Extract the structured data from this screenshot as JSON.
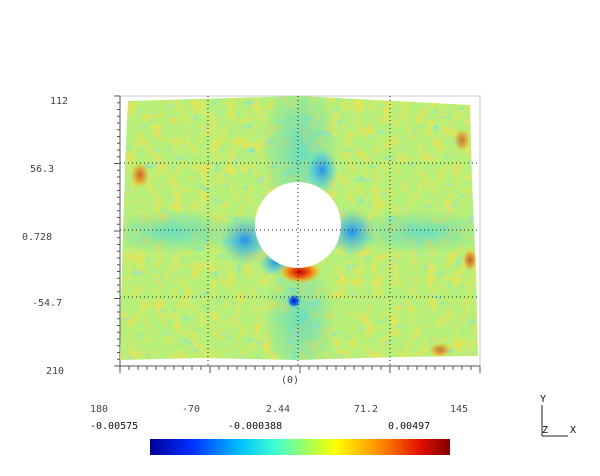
{
  "chart_data": {
    "type": "heatmap",
    "title": "",
    "xlabel": "(0)",
    "ylabel": "",
    "x_ticks": [
      "180",
      "-70",
      "2.44",
      "71.2",
      "145"
    ],
    "y_ticks": [
      "112",
      "56.3",
      "0.728",
      "-54.7",
      "210"
    ],
    "colorbar": {
      "min_label": "-0.00575",
      "mid_label": "-0.000388",
      "max_label": "0.00497",
      "min": -0.00575,
      "max": 0.00497,
      "colors": [
        "#0000a0",
        "#0050ff",
        "#00d8ff",
        "#80ff80",
        "#ffff00",
        "#ff8000",
        "#c00000",
        "#800000"
      ]
    },
    "features": [
      {
        "name": "hole",
        "x": 0,
        "y": 0.728,
        "note": "white circular void"
      },
      {
        "name": "peak-positive",
        "x": 0,
        "y": -35,
        "value": 0.00497
      },
      {
        "name": "peak-negative",
        "x": -2,
        "y": -60,
        "value": -0.00575
      }
    ],
    "grid": true
  },
  "triad": {
    "y_label": "Y",
    "z_label": "Z",
    "x_label": "X"
  }
}
